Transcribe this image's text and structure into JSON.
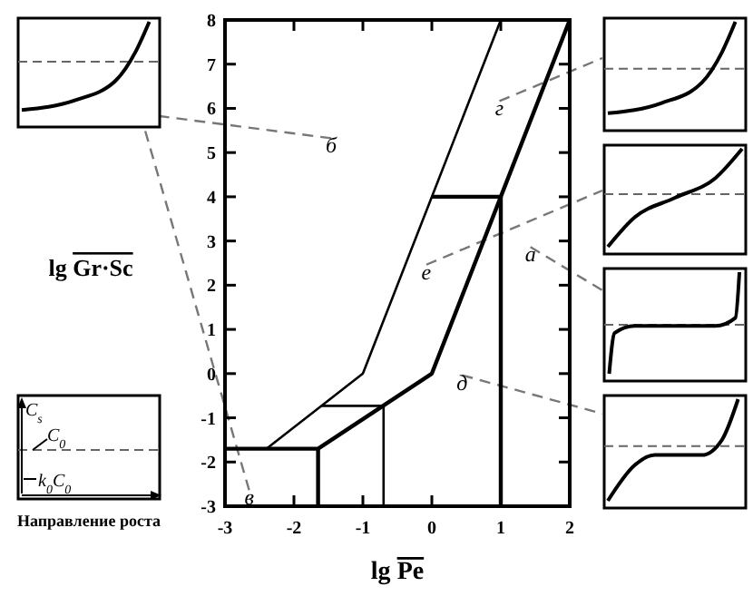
{
  "chart_data": {
    "type": "line",
    "xlabel": "lg Pe",
    "ylabel": "lg Gr·Sc",
    "xlim": [
      -3,
      2
    ],
    "ylim": [
      -3,
      8
    ],
    "xticks": [
      -3,
      -2,
      -1,
      0,
      1,
      2
    ],
    "yticks": [
      -3,
      -2,
      -1,
      0,
      1,
      2,
      3,
      4,
      5,
      6,
      7,
      8
    ],
    "grid": false,
    "marker": "none",
    "line_style": "solid",
    "series": [
      {
        "color": "#000000",
        "x": [
          -2.4,
          -1,
          0,
          1
        ],
        "values": [
          -1.7,
          0,
          4,
          8
        ]
      },
      {
        "color": "#000000",
        "x": [
          -3,
          -1.65,
          0,
          1,
          2
        ],
        "values": [
          -1.7,
          -1.7,
          0,
          4,
          8
        ]
      },
      {
        "color": "#000000",
        "x": [
          -1.65,
          -1.65
        ],
        "values": [
          -1.7,
          -3
        ]
      },
      {
        "color": "#000000",
        "x": [
          -1.6,
          -0.7,
          -0.7
        ],
        "values": [
          -0.73,
          -0.73,
          -3
        ]
      },
      {
        "color": "#000000",
        "x": [
          0,
          1,
          1
        ],
        "values": [
          4,
          4,
          -3
        ]
      }
    ],
    "annotations": [
      "б",
      "г",
      "е",
      "а",
      "д",
      "в",
      "C$_{s}$",
      "C$_{0}$",
      "k$_{0}$C$_{0}$",
      "Направление роста"
    ]
  }
}
